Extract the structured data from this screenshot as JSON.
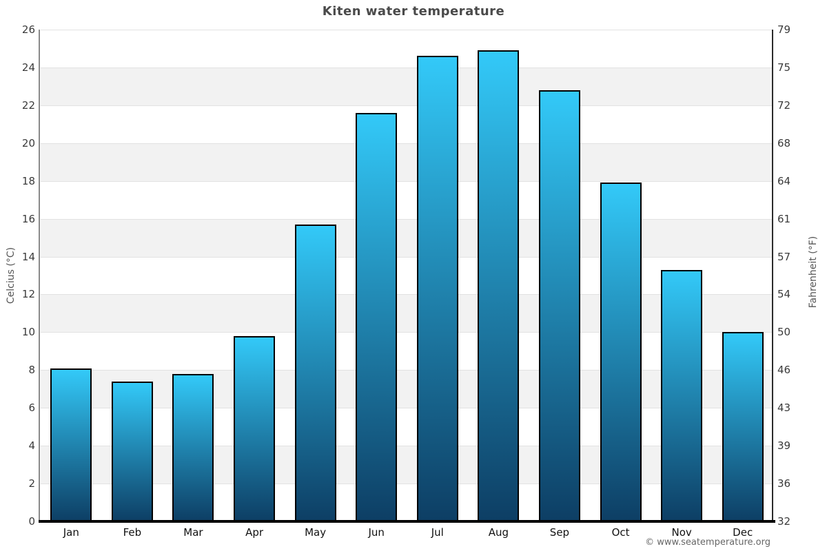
{
  "page": {
    "title": "Kiten water temperature",
    "footer_credit": "© www.seatemperature.org"
  },
  "chart_data": {
    "type": "bar",
    "title": "Kiten water temperature",
    "categories": [
      "Jan",
      "Feb",
      "Mar",
      "Apr",
      "May",
      "Jun",
      "Jul",
      "Aug",
      "Sep",
      "Oct",
      "Nov",
      "Dec"
    ],
    "values": [
      8.1,
      7.4,
      7.8,
      9.8,
      15.7,
      21.6,
      24.6,
      24.9,
      22.8,
      17.9,
      13.3,
      10.0
    ],
    "value_unit": "°C",
    "xlabel": "",
    "ylabel_left": "Celcius (°C)",
    "ylabel_right": "Fahrenheit (°F)",
    "ylim_celsius": [
      0,
      26
    ],
    "yticks_celsius": [
      26,
      24,
      22,
      20,
      18,
      16,
      14,
      12,
      10,
      8,
      6,
      4,
      2,
      0
    ],
    "yticks_fahrenheit": [
      79,
      75,
      72,
      68,
      64,
      61,
      57,
      54,
      50,
      46,
      43,
      39,
      36,
      32
    ],
    "legend_position": "none",
    "grid": "horizontal-bands-alternating",
    "colors": {
      "bar_gradient_top": "#33c9f8",
      "bar_gradient_bottom": "#0d3e64",
      "bar_border": "#000000",
      "band_alt": "#f2f2f2",
      "band_main": "#ffffff",
      "gridline": "#e2e2e2",
      "baseline": "#000000",
      "title_text": "#4a4a4a",
      "tick_text": "#3a3a3a",
      "footer_text": "#666666"
    }
  }
}
